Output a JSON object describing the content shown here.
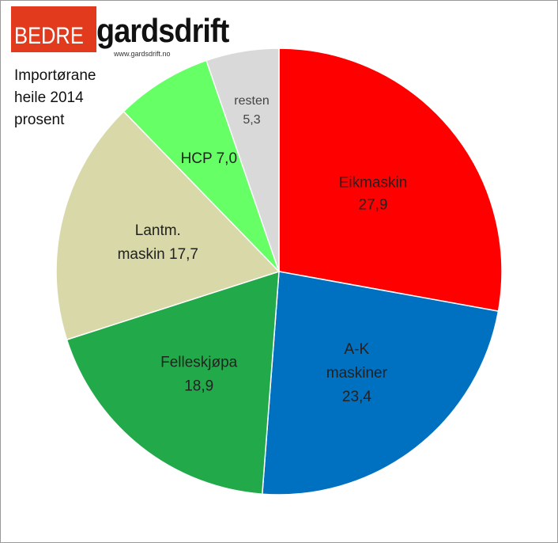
{
  "logo": {
    "bedre": "BEDRE",
    "gardsdrift": "gardsdrift",
    "url": "www.gardsdrift.no"
  },
  "chart_data": {
    "type": "pie",
    "title": "Importørane\nheile 2014\nprosent",
    "slices": [
      {
        "label_lines": [
          "Eikmaskin",
          "27,9"
        ],
        "value": 27.9,
        "color": "#ff0000"
      },
      {
        "label_lines": [
          "A-K",
          "maskiner",
          "23,4"
        ],
        "value": 23.4,
        "color": "#0070c0"
      },
      {
        "label_lines": [
          "Felleskjøpa",
          "18,9"
        ],
        "value": 18.9,
        "color": "#22aa4a"
      },
      {
        "label_lines": [
          "Lantm.",
          "maskin 17,7"
        ],
        "value": 17.7,
        "color": "#d8d8a8"
      },
      {
        "label_lines": [
          "HCP 7,0"
        ],
        "value": 7.0,
        "color": "#66ff66"
      },
      {
        "label_lines": [
          "resten",
          "5,3"
        ],
        "value": 5.3,
        "color": "#d9d9d9"
      }
    ]
  }
}
